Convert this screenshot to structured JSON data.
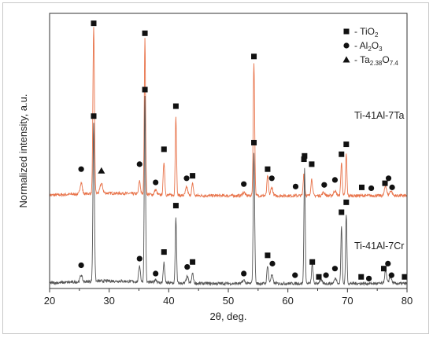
{
  "chart_data": {
    "type": "line",
    "xlabel": "2θ, deg.",
    "ylabel": "Normalized intensity, a.u.",
    "xlim": [
      20,
      80
    ],
    "x_ticks": [
      "20",
      "30",
      "40",
      "50",
      "60",
      "70",
      "80"
    ],
    "grid": false,
    "legend_position": "top-right",
    "legend": [
      {
        "marker": "square",
        "base": "- TiO",
        "sub": "2",
        "rest": ""
      },
      {
        "marker": "circle",
        "base": "- Al",
        "sub": "2",
        "rest": "O",
        "sub2": "3"
      },
      {
        "marker": "triangle",
        "base": "- Ta",
        "sub": "2.38",
        "rest": "O",
        "sub2": "7.4"
      }
    ],
    "series": [
      {
        "name": "Ti-41Al-7Ta",
        "color": "#e8734a",
        "baseline": 0.56,
        "peaks": [
          {
            "x": 25.3,
            "h": 0.07,
            "w": 0.25
          },
          {
            "x": 27.4,
            "h": 1.0,
            "w": 0.18
          },
          {
            "x": 28.7,
            "h": 0.06,
            "w": 0.3
          },
          {
            "x": 35.1,
            "h": 0.08,
            "w": 0.2
          },
          {
            "x": 36.0,
            "h": 0.94,
            "w": 0.15
          },
          {
            "x": 37.8,
            "h": 0.03,
            "w": 0.25
          },
          {
            "x": 39.2,
            "h": 0.2,
            "w": 0.18
          },
          {
            "x": 41.2,
            "h": 0.48,
            "w": 0.15
          },
          {
            "x": 43.0,
            "h": 0.05,
            "w": 0.25
          },
          {
            "x": 44.0,
            "h": 0.07,
            "w": 0.2
          },
          {
            "x": 52.6,
            "h": 0.02,
            "w": 0.3
          },
          {
            "x": 54.3,
            "h": 0.8,
            "w": 0.17
          },
          {
            "x": 56.6,
            "h": 0.12,
            "w": 0.18
          },
          {
            "x": 57.3,
            "h": 0.05,
            "w": 0.25
          },
          {
            "x": 62.7,
            "h": 0.14,
            "w": 0.18
          },
          {
            "x": 64.0,
            "h": 0.1,
            "w": 0.2
          },
          {
            "x": 66.0,
            "h": 0.02,
            "w": 0.3
          },
          {
            "x": 67.9,
            "h": 0.03,
            "w": 0.3
          },
          {
            "x": 69.0,
            "h": 0.2,
            "w": 0.17
          },
          {
            "x": 69.8,
            "h": 0.25,
            "w": 0.15
          },
          {
            "x": 76.4,
            "h": 0.06,
            "w": 0.25
          },
          {
            "x": 77.3,
            "h": 0.03,
            "w": 0.3
          }
        ],
        "markers": [
          {
            "x": 27.4,
            "y": 1.6,
            "type": "square"
          },
          {
            "x": 36.0,
            "y": 1.54,
            "type": "square"
          },
          {
            "x": 54.3,
            "y": 1.4,
            "type": "square"
          },
          {
            "x": 41.2,
            "y": 1.1,
            "type": "square"
          },
          {
            "x": 39.2,
            "y": 0.84,
            "type": "square"
          },
          {
            "x": 69.8,
            "y": 0.87,
            "type": "square"
          },
          {
            "x": 69.0,
            "y": 0.81,
            "type": "square"
          },
          {
            "x": 62.7,
            "y": 0.78,
            "type": "square"
          },
          {
            "x": 64.0,
            "y": 0.75,
            "type": "square"
          },
          {
            "x": 56.6,
            "y": 0.72,
            "type": "square"
          },
          {
            "x": 44.0,
            "y": 0.68,
            "type": "square"
          },
          {
            "x": 43.0,
            "y": 0.665,
            "type": "circle"
          },
          {
            "x": 57.3,
            "y": 0.665,
            "type": "circle"
          },
          {
            "x": 25.3,
            "y": 0.72,
            "type": "circle"
          },
          {
            "x": 35.1,
            "y": 0.75,
            "type": "circle"
          },
          {
            "x": 37.8,
            "y": 0.64,
            "type": "circle"
          },
          {
            "x": 52.6,
            "y": 0.63,
            "type": "circle"
          },
          {
            "x": 61.3,
            "y": 0.615,
            "type": "circle"
          },
          {
            "x": 66.1,
            "y": 0.625,
            "type": "circle"
          },
          {
            "x": 67.9,
            "y": 0.655,
            "type": "circle"
          },
          {
            "x": 28.7,
            "y": 0.71,
            "type": "triangle"
          },
          {
            "x": 72.4,
            "y": 0.61,
            "type": "square"
          },
          {
            "x": 76.3,
            "y": 0.635,
            "type": "square"
          },
          {
            "x": 76.9,
            "y": 0.665,
            "type": "circle"
          },
          {
            "x": 74.0,
            "y": 0.605,
            "type": "circle"
          },
          {
            "x": 77.5,
            "y": 0.61,
            "type": "circle"
          }
        ]
      },
      {
        "name": "Ti-41Al-7Cr",
        "color": "#555555",
        "baseline": 0.03,
        "peaks": [
          {
            "x": 25.3,
            "h": 0.04,
            "w": 0.25
          },
          {
            "x": 27.4,
            "h": 0.96,
            "w": 0.17
          },
          {
            "x": 35.1,
            "h": 0.1,
            "w": 0.2
          },
          {
            "x": 36.0,
            "h": 1.12,
            "w": 0.15
          },
          {
            "x": 37.8,
            "h": 0.02,
            "w": 0.25
          },
          {
            "x": 39.2,
            "h": 0.12,
            "w": 0.18
          },
          {
            "x": 41.2,
            "h": 0.4,
            "w": 0.15
          },
          {
            "x": 43.1,
            "h": 0.04,
            "w": 0.25
          },
          {
            "x": 44.0,
            "h": 0.06,
            "w": 0.2
          },
          {
            "x": 52.6,
            "h": 0.02,
            "w": 0.3
          },
          {
            "x": 54.3,
            "h": 0.78,
            "w": 0.17
          },
          {
            "x": 56.6,
            "h": 0.11,
            "w": 0.18
          },
          {
            "x": 57.3,
            "h": 0.05,
            "w": 0.25
          },
          {
            "x": 62.8,
            "h": 0.7,
            "w": 0.15
          },
          {
            "x": 64.1,
            "h": 0.12,
            "w": 0.18
          },
          {
            "x": 65.5,
            "h": 0.02,
            "w": 0.3
          },
          {
            "x": 68.0,
            "h": 0.03,
            "w": 0.3
          },
          {
            "x": 69.0,
            "h": 0.35,
            "w": 0.15
          },
          {
            "x": 69.8,
            "h": 0.42,
            "w": 0.15
          },
          {
            "x": 76.4,
            "h": 0.08,
            "w": 0.22
          },
          {
            "x": 77.2,
            "h": 0.04,
            "w": 0.3
          }
        ],
        "markers": [
          {
            "x": 27.4,
            "y": 1.04,
            "type": "square"
          },
          {
            "x": 36.0,
            "y": 1.2,
            "type": "square"
          },
          {
            "x": 54.3,
            "y": 0.88,
            "type": "square"
          },
          {
            "x": 62.8,
            "y": 0.8,
            "type": "square"
          },
          {
            "x": 41.2,
            "y": 0.5,
            "type": "square"
          },
          {
            "x": 69.8,
            "y": 0.52,
            "type": "square"
          },
          {
            "x": 69.0,
            "y": 0.46,
            "type": "square"
          },
          {
            "x": 39.2,
            "y": 0.22,
            "type": "square"
          },
          {
            "x": 56.6,
            "y": 0.2,
            "type": "square"
          },
          {
            "x": 44.0,
            "y": 0.16,
            "type": "square"
          },
          {
            "x": 64.1,
            "y": 0.16,
            "type": "square"
          },
          {
            "x": 25.3,
            "y": 0.14,
            "type": "circle"
          },
          {
            "x": 35.1,
            "y": 0.18,
            "type": "circle"
          },
          {
            "x": 37.8,
            "y": 0.09,
            "type": "circle"
          },
          {
            "x": 43.1,
            "y": 0.13,
            "type": "circle"
          },
          {
            "x": 52.6,
            "y": 0.09,
            "type": "circle"
          },
          {
            "x": 57.4,
            "y": 0.15,
            "type": "circle"
          },
          {
            "x": 61.2,
            "y": 0.08,
            "type": "circle"
          },
          {
            "x": 66.4,
            "y": 0.08,
            "type": "circle"
          },
          {
            "x": 67.9,
            "y": 0.12,
            "type": "circle"
          },
          {
            "x": 65.2,
            "y": 0.07,
            "type": "square"
          },
          {
            "x": 72.3,
            "y": 0.07,
            "type": "square"
          },
          {
            "x": 76.1,
            "y": 0.12,
            "type": "square"
          },
          {
            "x": 76.8,
            "y": 0.15,
            "type": "circle"
          },
          {
            "x": 73.6,
            "y": 0.06,
            "type": "circle"
          },
          {
            "x": 77.4,
            "y": 0.08,
            "type": "circle"
          },
          {
            "x": 79.6,
            "y": 0.07,
            "type": "square"
          }
        ]
      }
    ]
  }
}
